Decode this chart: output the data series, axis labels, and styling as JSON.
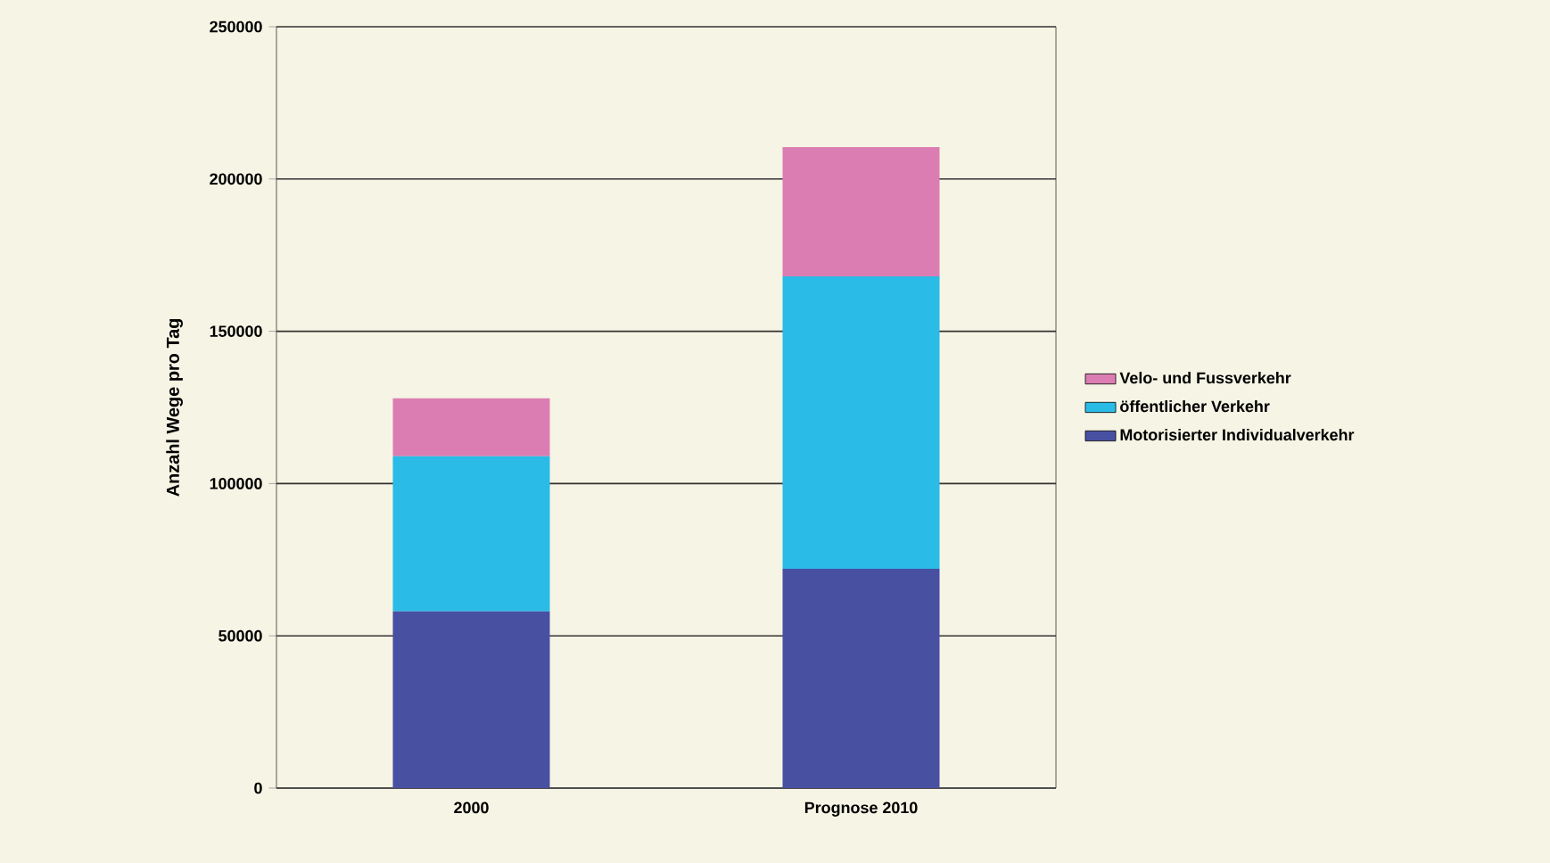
{
  "chart_data": {
    "type": "bar",
    "stacked": true,
    "ylabel": "Anzahl Wege pro Tag",
    "categories": [
      "2000",
      "Prognose 2010"
    ],
    "series": [
      {
        "name": "Motorisierter Individualverkehr",
        "color": "#4850a2",
        "values": [
          58000,
          72000
        ]
      },
      {
        "name": "öffentlicher Verkehr",
        "color": "#2abbe6",
        "values": [
          51000,
          96000
        ]
      },
      {
        "name": "Velo- und Fussverkehr",
        "color": "#db7db2",
        "values": [
          19000,
          42500
        ]
      }
    ],
    "ylim": [
      0,
      250000
    ],
    "yticks": [
      0,
      50000,
      100000,
      150000,
      200000,
      250000
    ],
    "grid": "y",
    "legend": "right"
  }
}
